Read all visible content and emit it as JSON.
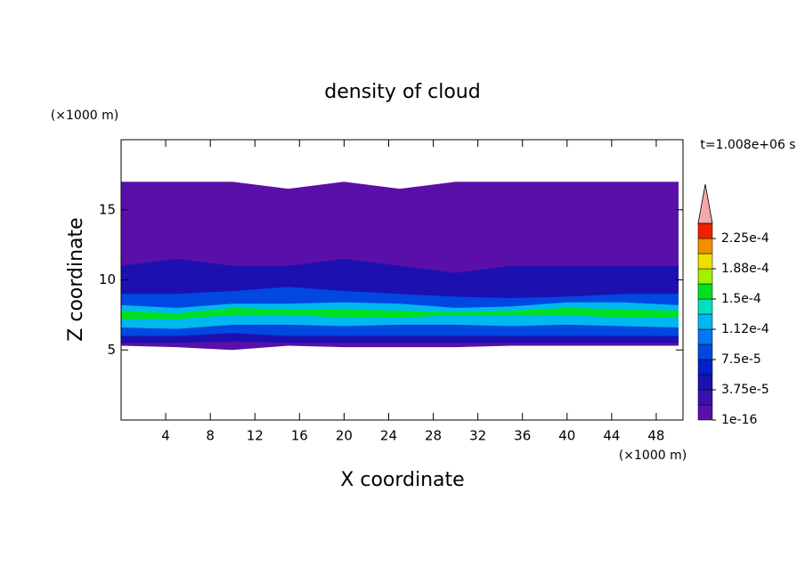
{
  "chart_data": {
    "type": "contour",
    "title": "density of cloud",
    "x_label": "X coordinate",
    "y_label": "Z coordinate",
    "x_unit": "(×1000 m)",
    "y_unit": "(×1000 m)",
    "time_label": "t=1.008e+06 s",
    "xlim": [
      0,
      50.4
    ],
    "ylim": [
      0,
      20
    ],
    "xticks": [
      4,
      8,
      12,
      16,
      20,
      24,
      28,
      32,
      36,
      40,
      44,
      48
    ],
    "yticks": [
      5,
      10,
      15
    ],
    "x": [
      0,
      5,
      10,
      15,
      20,
      25,
      30,
      35,
      40,
      45,
      50
    ],
    "bands": [
      {
        "level": 1e-16,
        "bottom": [
          5.3,
          5.2,
          5,
          5.3,
          5.2,
          5.2,
          5.2,
          5.3,
          5.3,
          5.3,
          5.3
        ],
        "top": [
          17,
          17,
          17,
          16.5,
          17,
          16.5,
          17,
          17,
          17,
          17,
          17
        ]
      },
      {
        "level": 3.75e-05,
        "bottom": [
          5.5,
          5.5,
          5.6,
          5.5,
          5.5,
          5.5,
          5.5,
          5.5,
          5.5,
          5.5,
          5.5
        ],
        "top": [
          11,
          11.5,
          11,
          11,
          11.5,
          11,
          10.5,
          11,
          11,
          11,
          11
        ]
      },
      {
        "level": 7.5e-05,
        "bottom": [
          6,
          6,
          6.2,
          6,
          6,
          6,
          6,
          6,
          6,
          6,
          6
        ],
        "top": [
          9,
          9,
          9.2,
          9.5,
          9.2,
          9,
          8.8,
          8.7,
          8.8,
          9,
          9
        ]
      },
      {
        "level": 0.0001125,
        "bottom": [
          6.6,
          6.5,
          6.8,
          6.8,
          6.7,
          6.8,
          6.8,
          6.7,
          6.8,
          6.7,
          6.6
        ],
        "top": [
          8.2,
          8,
          8.3,
          8.3,
          8.4,
          8.3,
          8,
          8.1,
          8.4,
          8.4,
          8.2
        ]
      },
      {
        "level": 0.00015,
        "bottom": [
          7.2,
          7.2,
          7.5,
          7.5,
          7.3,
          7.3,
          7.5,
          7.5,
          7.5,
          7.3,
          7.3
        ],
        "top": [
          7.8,
          7.6,
          8,
          7.9,
          7.9,
          7.8,
          7.7,
          7.8,
          8,
          7.9,
          7.8
        ]
      }
    ],
    "colorbar": {
      "lim": [
        0,
        0.00024375
      ],
      "levels": [
        1e-16,
        1.875e-05,
        3.75e-05,
        5.625e-05,
        7.5e-05,
        9.375e-05,
        0.0001125,
        0.00013125,
        0.00015,
        0.00016875,
        0.0001875,
        0.00020625,
        0.000225
      ],
      "colors": [
        "#5a10a8",
        "#3a10b0",
        "#1c10b0",
        "#0020c8",
        "#0048e0",
        "#0078f0",
        "#00b8f0",
        "#00e0c0",
        "#00e020",
        "#a0f000",
        "#f0e000",
        "#f09000",
        "#f02000"
      ],
      "extend_color": "#f4a8a8",
      "ticks": [
        1e-16,
        {
          "value": 3.75e-05,
          "label": "3.75e-5"
        },
        {
          "value": 7.5e-05,
          "label": "7.5e-5"
        },
        {
          "value": 0.0001125,
          "label": "1.12e-4"
        },
        {
          "value": 0.00015,
          "label": "1.5e-4"
        },
        {
          "value": 0.0001875,
          "label": "1.88e-4"
        },
        {
          "value": 0.000225,
          "label": "2.25e-4"
        }
      ]
    }
  }
}
